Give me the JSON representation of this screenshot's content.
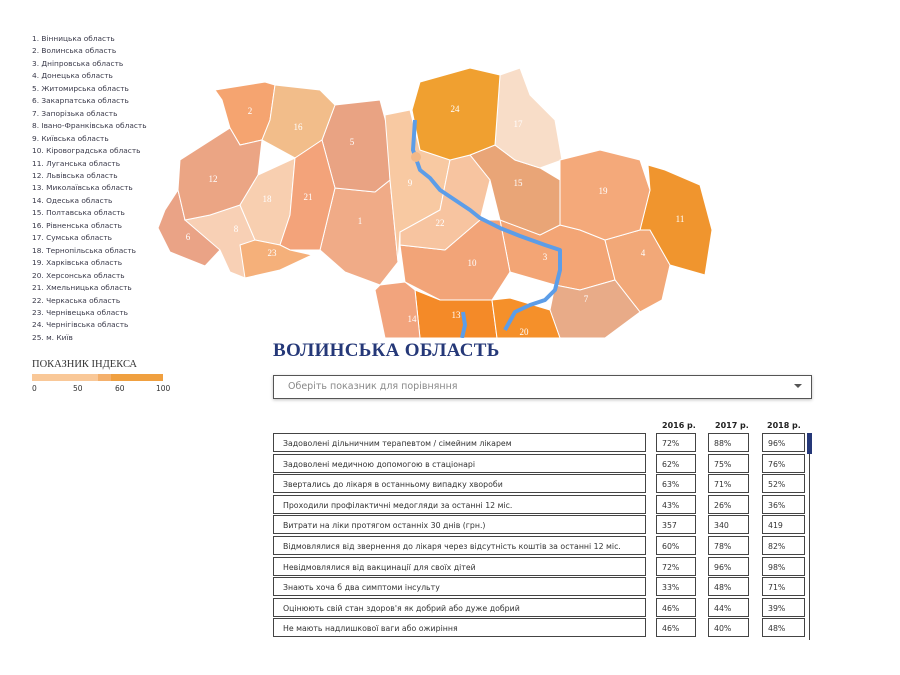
{
  "regions_list": [
    "1. Вінницька область",
    "2. Волинська область",
    "3. Дніпровська область",
    "4. Донецька область",
    "5. Житомирська область",
    "6. Закарпатська область",
    "7. Запорізька область",
    "8. Івано-Франківська область",
    "9. Київська область",
    "10. Кіровоградська область",
    "11. Луганська область",
    "12. Львівська область",
    "13. Миколаївська область",
    "14. Одеська область",
    "15. Полтавська область",
    "16. Рівненська область",
    "17. Сумська область",
    "18. Тернопільська область",
    "19. Харківська область",
    "20. Херсонська область",
    "21. Хмельницька область",
    "22. Черкаська область",
    "23. Чернівецька область",
    "24. Чернігівська область",
    "25. м. Київ"
  ],
  "index_legend": {
    "title": "ПОКАЗНИК ІНДЕКСА",
    "ticks": [
      "0",
      "50",
      "60",
      "100"
    ],
    "colors": [
      "#f9c898",
      "#f4b06c",
      "#f0a040"
    ]
  },
  "map": {
    "labels": [
      "1",
      "2",
      "3",
      "4",
      "5",
      "6",
      "7",
      "8",
      "9",
      "10",
      "11",
      "12",
      "13",
      "14",
      "15",
      "16",
      "17",
      "18",
      "19",
      "20",
      "21",
      "22",
      "23",
      "24"
    ],
    "colors": {
      "1": "#f0ab87",
      "2": "#f5a470",
      "3": "#f3a575",
      "4": "#f2a878",
      "5": "#e9a383",
      "6": "#eaa386",
      "7": "#e8ab88",
      "8": "#f8d0b5",
      "9": "#f8c9a2",
      "10": "#f2a478",
      "11": "#f0952e",
      "12": "#eba584",
      "13": "#f48a28",
      "14": "#f2a47d",
      "15": "#e9a577",
      "16": "#f2bd8a",
      "17": "#f8ddc8",
      "18": "#f8cfb0",
      "19": "#f4a97a",
      "20": "#f5902a",
      "21": "#f3a37a",
      "22": "#f7c4a0",
      "23": "#f5b07a",
      "24": "#f0a030",
      "25": "#f2b888"
    },
    "river_color": "#5c9de8"
  },
  "title": "ВОЛИНСЬКА ОБЛАСТЬ",
  "dropdown": {
    "placeholder": "Оберіть показник для порівняння"
  },
  "table": {
    "years": [
      "2016 р.",
      "2017 р.",
      "2018 р."
    ],
    "rows": [
      {
        "label": "Задоволені дільничним терапевтом / сімейним лікарем",
        "v": [
          "72%",
          "88%",
          "96%"
        ]
      },
      {
        "label": "Задоволені медичною допомогою в стаціонарі",
        "v": [
          "62%",
          "75%",
          "76%"
        ]
      },
      {
        "label": "Звертались до лікаря в останньому випадку хвороби",
        "v": [
          "63%",
          "71%",
          "52%"
        ]
      },
      {
        "label": "Проходили профілактичні медогляди за останні 12 міс.",
        "v": [
          "43%",
          "26%",
          "36%"
        ]
      },
      {
        "label": "Витрати на ліки протягом останніх 30 днів (грн.)",
        "v": [
          "357",
          "340",
          "419"
        ]
      },
      {
        "label": "Відмовлялися від звернення до лікаря через відсутність коштів за останні 12 міс.",
        "v": [
          "60%",
          "78%",
          "82%"
        ]
      },
      {
        "label": "Невідмовлялися від вакцинації для своїх дітей",
        "v": [
          "72%",
          "96%",
          "98%"
        ]
      },
      {
        "label": "Знають хоча б два симптоми інсульту",
        "v": [
          "33%",
          "48%",
          "71%"
        ]
      },
      {
        "label": "Оцінюють свій стан здоров'я як добрий або дуже добрий",
        "v": [
          "46%",
          "44%",
          "39%"
        ]
      },
      {
        "label": "Не мають надлишкової ваги або ожиріння",
        "v": [
          "46%",
          "40%",
          "48%"
        ]
      }
    ]
  }
}
